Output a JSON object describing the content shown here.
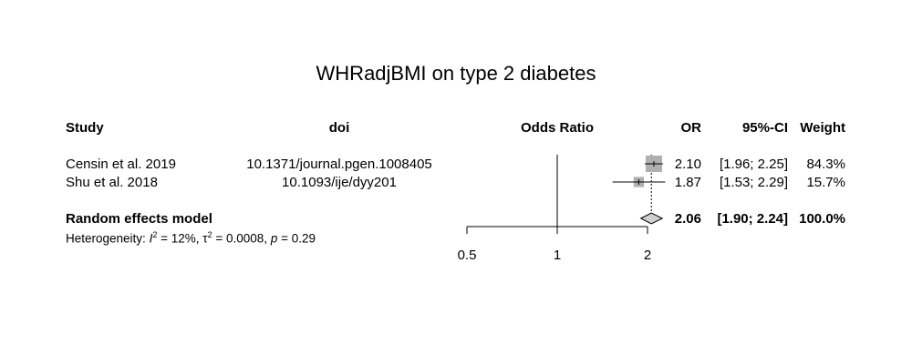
{
  "title": "WHRadjBMI on type 2 diabetes",
  "headers": {
    "study": "Study",
    "doi": "doi",
    "odds_ratio": "Odds Ratio",
    "or": "OR",
    "ci": "95%-CI",
    "weight": "Weight"
  },
  "rows": [
    {
      "study": "Censin et al. 2019",
      "doi": "10.1371/journal.pgen.1008405",
      "or": "2.10",
      "ci": "[1.96; 2.25]",
      "weight": "84.3%"
    },
    {
      "study": "Shu et al. 2018",
      "doi": "10.1093/ije/dyy201",
      "or": "1.87",
      "ci": "[1.53; 2.29]",
      "weight": "15.7%"
    }
  ],
  "summary": {
    "label": "Random effects model",
    "or": "2.06",
    "ci": "[1.90; 2.24]",
    "weight": "100.0%"
  },
  "heterogeneity": {
    "prefix": "Heterogeneity: ",
    "i_sym": "I",
    "i_value": " = 12%, ",
    "tau_sym": "τ",
    "tau_value": " = 0.0008, ",
    "p_sym": "p",
    "p_value": " = 0.29",
    "sup": "2"
  },
  "chart_data": {
    "type": "forest",
    "title": "WHRadjBMI on type 2 diabetes",
    "xlabel": "Odds Ratio",
    "x_scale": "log",
    "xlim": [
      0.5,
      2
    ],
    "ticks": [
      "0.5",
      "1",
      "2"
    ],
    "tick_values": [
      0.5,
      1,
      2
    ],
    "reference_line": 1,
    "studies": [
      {
        "name": "Censin et al. 2019",
        "or": 2.1,
        "lower": 1.96,
        "upper": 2.25,
        "weight": 84.3
      },
      {
        "name": "Shu et al. 2018",
        "or": 1.87,
        "lower": 1.53,
        "upper": 2.29,
        "weight": 15.7
      }
    ],
    "pooled": {
      "name": "Random effects model",
      "or": 2.06,
      "lower": 1.9,
      "upper": 2.24,
      "weight": 100.0
    },
    "colors": {
      "box": "#b0b0b0",
      "diamond": "#d0d0d0",
      "line": "#000000"
    }
  }
}
